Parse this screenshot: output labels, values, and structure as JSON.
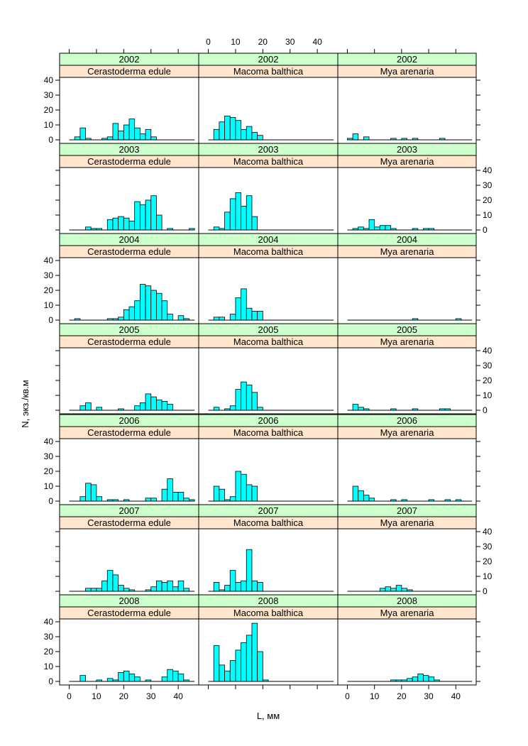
{
  "chart_data": {
    "type": "bar",
    "layout": "lattice histogram, 7 rows (years) x 3 columns (species)",
    "xlabel": "L, мм",
    "ylabel": "N, экз./кв.м",
    "xlim": [
      -3,
      47
    ],
    "ylim": [
      0,
      40
    ],
    "x_ticks": [
      0,
      10,
      20,
      30,
      40
    ],
    "y_ticks": [
      0,
      10,
      20,
      30,
      40
    ],
    "bin_width": 2,
    "bin_starts": [
      0,
      2,
      4,
      6,
      8,
      10,
      12,
      14,
      16,
      18,
      20,
      22,
      24,
      26,
      28,
      30,
      32,
      34,
      36,
      38,
      40,
      42,
      44
    ],
    "bar_color": "#00ffff",
    "year_strip_color": "#ccffcc",
    "species_strip_color": "#ffe5cc",
    "years": [
      "2002",
      "2003",
      "2004",
      "2005",
      "2006",
      "2007",
      "2008"
    ],
    "species": [
      "Cerastoderma edule",
      "Macoma balthica",
      "Mya arenaria"
    ],
    "panels": [
      {
        "year": "2002",
        "species": "Cerastoderma edule",
        "values": [
          0,
          2,
          8,
          1,
          0,
          0,
          1,
          2,
          11,
          6,
          10,
          14,
          8,
          4,
          7,
          2,
          0,
          0,
          0,
          0,
          0,
          0,
          0
        ]
      },
      {
        "year": "2002",
        "species": "Macoma balthica",
        "values": [
          0,
          7,
          12,
          16,
          15,
          13,
          7,
          9,
          5,
          3,
          0,
          0,
          0,
          0,
          0,
          0,
          0,
          0,
          0,
          0,
          0,
          0,
          0
        ]
      },
      {
        "year": "2002",
        "species": "Mya arenaria",
        "values": [
          1,
          4,
          0,
          2,
          0,
          0,
          0,
          0,
          1,
          0,
          1,
          0,
          1,
          0,
          0,
          0,
          0,
          1,
          0,
          0,
          0,
          0,
          0
        ]
      },
      {
        "year": "2003",
        "species": "Cerastoderma edule",
        "values": [
          0,
          0,
          0,
          2,
          1,
          1,
          0,
          7,
          8,
          9,
          8,
          6,
          19,
          17,
          20,
          23,
          10,
          0,
          1,
          0,
          0,
          0,
          1
        ]
      },
      {
        "year": "2003",
        "species": "Macoma balthica",
        "values": [
          0,
          2,
          1,
          12,
          21,
          25,
          16,
          23,
          9,
          0,
          0,
          0,
          0,
          0,
          0,
          0,
          0,
          0,
          0,
          0,
          0,
          0,
          0
        ]
      },
      {
        "year": "2003",
        "species": "Mya arenaria",
        "values": [
          0,
          1,
          2,
          1,
          7,
          2,
          3,
          3,
          1,
          0,
          0,
          0,
          1,
          0,
          1,
          1,
          0,
          0,
          0,
          0,
          0,
          0,
          0
        ]
      },
      {
        "year": "2004",
        "species": "Cerastoderma edule",
        "values": [
          0,
          1,
          0,
          0,
          0,
          0,
          0,
          1,
          1,
          2,
          7,
          9,
          13,
          24,
          23,
          20,
          18,
          13,
          4,
          0,
          3,
          1,
          0
        ]
      },
      {
        "year": "2004",
        "species": "Macoma balthica",
        "values": [
          0,
          2,
          2,
          0,
          4,
          15,
          21,
          8,
          6,
          6,
          0,
          0,
          0,
          0,
          0,
          0,
          0,
          0,
          0,
          0,
          0,
          0,
          0
        ]
      },
      {
        "year": "2004",
        "species": "Mya arenaria",
        "values": [
          0,
          0,
          0,
          0,
          0,
          0,
          0,
          0,
          0,
          0,
          0,
          0,
          1,
          0,
          0,
          0,
          0,
          0,
          0,
          0,
          1,
          0,
          0
        ]
      },
      {
        "year": "2005",
        "species": "Cerastoderma edule",
        "values": [
          0,
          0,
          3,
          5,
          0,
          2,
          0,
          0,
          0,
          1,
          0,
          0,
          3,
          5,
          11,
          9,
          7,
          6,
          4,
          0,
          0,
          0,
          0
        ]
      },
      {
        "year": "2005",
        "species": "Macoma balthica",
        "values": [
          0,
          2,
          0,
          1,
          3,
          14,
          19,
          17,
          12,
          2,
          0,
          0,
          0,
          0,
          0,
          0,
          0,
          0,
          0,
          0,
          0,
          0,
          0
        ]
      },
      {
        "year": "2005",
        "species": "Mya arenaria",
        "values": [
          0,
          4,
          2,
          1,
          0,
          0,
          0,
          0,
          1,
          0,
          0,
          0,
          1,
          0,
          0,
          0,
          0,
          1,
          1,
          0,
          0,
          0,
          0
        ]
      },
      {
        "year": "2006",
        "species": "Cerastoderma edule",
        "values": [
          0,
          0,
          3,
          12,
          11,
          3,
          0,
          1,
          1,
          0,
          1,
          0,
          0,
          0,
          2,
          2,
          0,
          8,
          15,
          6,
          6,
          2,
          1
        ]
      },
      {
        "year": "2006",
        "species": "Macoma balthica",
        "values": [
          0,
          10,
          8,
          1,
          3,
          20,
          18,
          11,
          10,
          0,
          0,
          0,
          0,
          0,
          0,
          0,
          0,
          0,
          0,
          0,
          0,
          0,
          0
        ]
      },
      {
        "year": "2006",
        "species": "Mya arenaria",
        "values": [
          0,
          10,
          7,
          4,
          2,
          0,
          0,
          0,
          1,
          0,
          1,
          0,
          0,
          0,
          0,
          1,
          0,
          0,
          1,
          0,
          1,
          0,
          0
        ]
      },
      {
        "year": "2007",
        "species": "Cerastoderma edule",
        "values": [
          0,
          0,
          0,
          2,
          2,
          2,
          7,
          14,
          11,
          4,
          2,
          1,
          0,
          0,
          1,
          3,
          7,
          6,
          7,
          3,
          7,
          2,
          0
        ]
      },
      {
        "year": "2007",
        "species": "Macoma balthica",
        "values": [
          0,
          6,
          1,
          4,
          14,
          6,
          7,
          28,
          7,
          6,
          0,
          0,
          0,
          0,
          0,
          0,
          0,
          0,
          0,
          0,
          0,
          0,
          0
        ]
      },
      {
        "year": "2007",
        "species": "Mya arenaria",
        "values": [
          0,
          0,
          0,
          0,
          0,
          0,
          2,
          3,
          2,
          4,
          2,
          1,
          0,
          0,
          0,
          0,
          0,
          0,
          0,
          0,
          0,
          0,
          0
        ]
      },
      {
        "year": "2008",
        "species": "Cerastoderma edule",
        "values": [
          0,
          0,
          4,
          0,
          0,
          1,
          0,
          2,
          1,
          6,
          7,
          5,
          3,
          0,
          1,
          0,
          0,
          3,
          8,
          7,
          5,
          1,
          0
        ]
      },
      {
        "year": "2008",
        "species": "Macoma balthica",
        "values": [
          0,
          24,
          11,
          7,
          14,
          21,
          26,
          31,
          39,
          20,
          1,
          0,
          0,
          0,
          0,
          0,
          0,
          0,
          0,
          0,
          0,
          0,
          0
        ]
      },
      {
        "year": "2008",
        "species": "Mya arenaria",
        "values": [
          0,
          0,
          0,
          0,
          0,
          0,
          0,
          0,
          1,
          1,
          1,
          2,
          3,
          5,
          4,
          3,
          1,
          0,
          0,
          0,
          0,
          0,
          0
        ]
      }
    ]
  }
}
